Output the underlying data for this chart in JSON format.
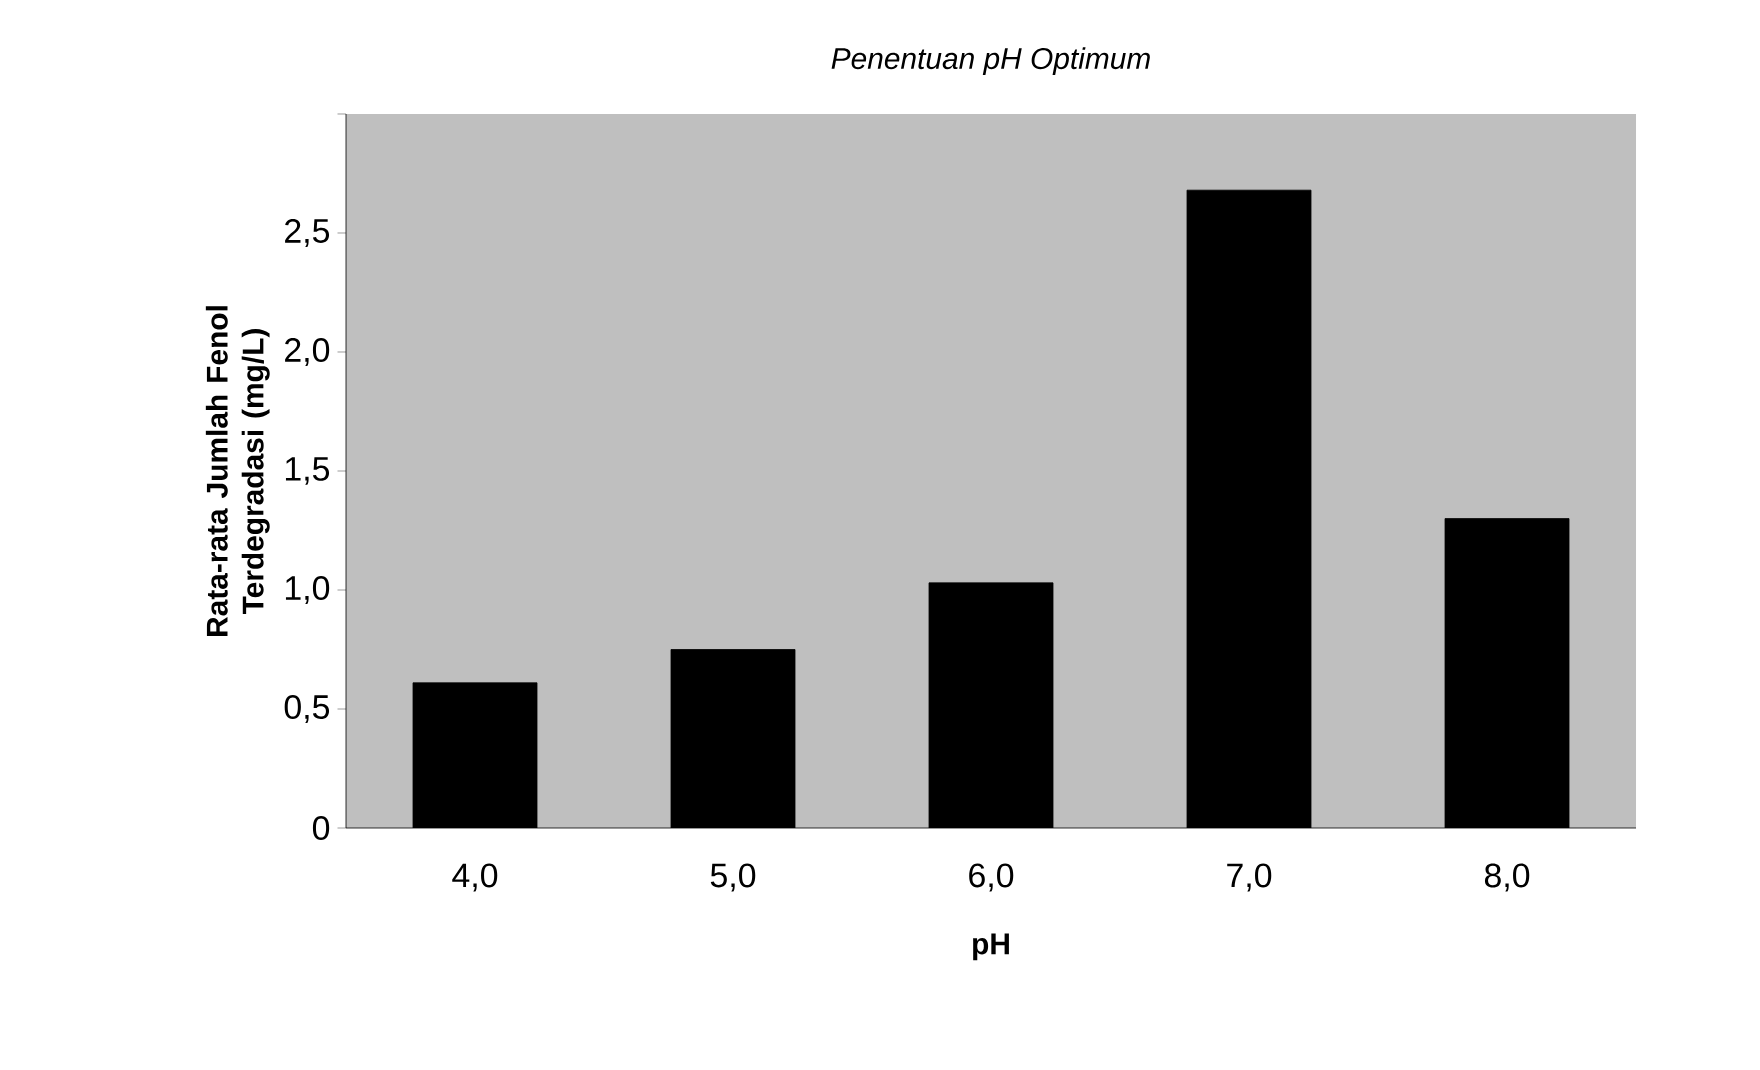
{
  "chart_data": {
    "type": "bar",
    "title": "Penentuan pH Optimum",
    "xlabel": "pH",
    "ylabel": "Rata-rata Jumlah Fenol Terdegradasi (mg/L)",
    "categories": [
      "4,0",
      "5,0",
      "6,0",
      "7,0",
      "8,0"
    ],
    "values": [
      0.61,
      0.75,
      1.03,
      2.68,
      1.3
    ],
    "color": "#000000",
    "ylim": [
      0,
      3
    ],
    "yticks": [
      0,
      {
        "value": 0.5,
        "label": "0,5"
      },
      {
        "value": 1,
        "label": "1,0"
      },
      {
        "value": 1.5,
        "label": "1,5"
      },
      {
        "value": 2,
        "label": "2,0"
      },
      {
        "value": 2.5,
        "label": "2,5"
      },
      {
        "value": 3,
        "label": null
      }
    ]
  }
}
